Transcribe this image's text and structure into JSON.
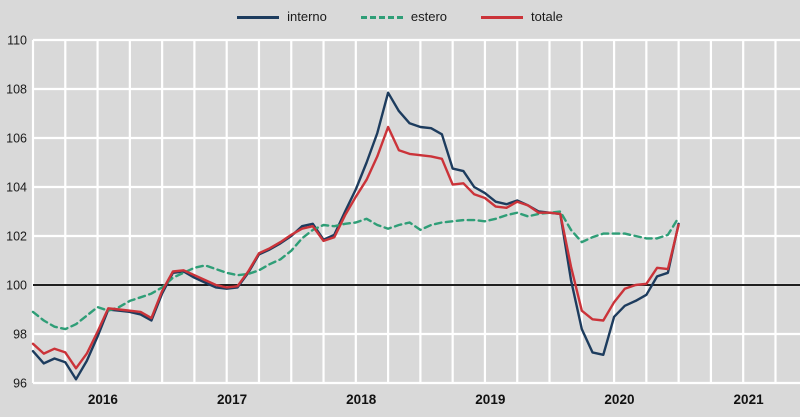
{
  "chart_data": {
    "type": "line",
    "title": "",
    "x_freq": "monthly",
    "x_start": "2015-12",
    "x_end": "2020-12",
    "x_tick_labels": [
      "2016",
      "2017",
      "2018",
      "2019",
      "2020",
      "2021"
    ],
    "yticks": [
      96,
      98,
      100,
      102,
      104,
      106,
      108,
      110
    ],
    "ylim": [
      96,
      110
    ],
    "reference_line": 100,
    "grid": "white gridlines on gray background, vertical lines quarterly",
    "legend_position": "top-center",
    "colors": {
      "background": "#d9d9d9",
      "gridline": "#ffffff",
      "reference_line": "#000000",
      "interno": "#1d3c5e",
      "estero": "#2f9e77",
      "totale": "#cb3339"
    },
    "months": [
      "2015-12",
      "2016-01",
      "2016-02",
      "2016-03",
      "2016-04",
      "2016-05",
      "2016-06",
      "2016-07",
      "2016-08",
      "2016-09",
      "2016-10",
      "2016-11",
      "2016-12",
      "2017-01",
      "2017-02",
      "2017-03",
      "2017-04",
      "2017-05",
      "2017-06",
      "2017-07",
      "2017-08",
      "2017-09",
      "2017-10",
      "2017-11",
      "2017-12",
      "2018-01",
      "2018-02",
      "2018-03",
      "2018-04",
      "2018-05",
      "2018-06",
      "2018-07",
      "2018-08",
      "2018-09",
      "2018-10",
      "2018-11",
      "2018-12",
      "2019-01",
      "2019-02",
      "2019-03",
      "2019-04",
      "2019-05",
      "2019-06",
      "2019-07",
      "2019-08",
      "2019-09",
      "2019-10",
      "2019-11",
      "2019-12",
      "2020-01",
      "2020-02",
      "2020-03",
      "2020-04",
      "2020-05",
      "2020-06",
      "2020-07",
      "2020-08",
      "2020-09",
      "2020-10",
      "2020-11",
      "2020-12"
    ],
    "series": [
      {
        "name": "interno",
        "color": "#1d3c5e",
        "style": "solid",
        "values": [
          97.3,
          96.8,
          97.0,
          96.85,
          96.15,
          96.9,
          97.9,
          99.0,
          98.95,
          98.9,
          98.8,
          98.55,
          99.65,
          100.5,
          100.55,
          100.3,
          100.1,
          99.9,
          99.85,
          99.9,
          100.5,
          101.25,
          101.45,
          101.7,
          102.0,
          102.4,
          102.5,
          101.85,
          102.05,
          103.0,
          103.9,
          105.0,
          106.2,
          107.85,
          107.1,
          106.6,
          106.45,
          106.4,
          106.15,
          104.75,
          104.65,
          104.0,
          103.75,
          103.4,
          103.3,
          103.45,
          103.25,
          103.0,
          102.95,
          102.9,
          100.2,
          98.2,
          97.25,
          97.15,
          98.7,
          99.15,
          99.35,
          99.6,
          100.35,
          100.5,
          102.5
        ]
      },
      {
        "name": "estero",
        "color": "#2f9e77",
        "style": "dashed",
        "values": [
          98.9,
          98.55,
          98.3,
          98.2,
          98.4,
          98.75,
          99.1,
          98.95,
          99.1,
          99.35,
          99.5,
          99.65,
          99.9,
          100.3,
          100.5,
          100.7,
          100.8,
          100.65,
          100.5,
          100.4,
          100.45,
          100.6,
          100.85,
          101.05,
          101.4,
          101.9,
          102.25,
          102.45,
          102.4,
          102.5,
          102.55,
          102.7,
          102.45,
          102.3,
          102.45,
          102.55,
          102.25,
          102.45,
          102.55,
          102.6,
          102.65,
          102.65,
          102.6,
          102.7,
          102.85,
          102.95,
          102.8,
          102.9,
          102.95,
          103.0,
          102.25,
          101.75,
          101.95,
          102.1,
          102.1,
          102.1,
          102.0,
          101.9,
          101.9,
          102.05,
          102.75
        ]
      },
      {
        "name": "totale",
        "color": "#cb3339",
        "style": "solid",
        "values": [
          97.6,
          97.2,
          97.4,
          97.25,
          96.6,
          97.2,
          98.1,
          99.05,
          99.0,
          98.95,
          98.9,
          98.65,
          99.75,
          100.55,
          100.6,
          100.4,
          100.2,
          100.0,
          99.9,
          99.95,
          100.55,
          101.3,
          101.5,
          101.75,
          102.05,
          102.3,
          102.4,
          101.8,
          101.95,
          102.85,
          103.6,
          104.3,
          105.25,
          106.45,
          105.5,
          105.35,
          105.3,
          105.25,
          105.15,
          104.1,
          104.15,
          103.7,
          103.55,
          103.2,
          103.15,
          103.4,
          103.25,
          102.95,
          102.95,
          102.9,
          100.75,
          98.95,
          98.6,
          98.55,
          99.3,
          99.85,
          100.0,
          100.05,
          100.7,
          100.65,
          102.45
        ]
      }
    ]
  }
}
